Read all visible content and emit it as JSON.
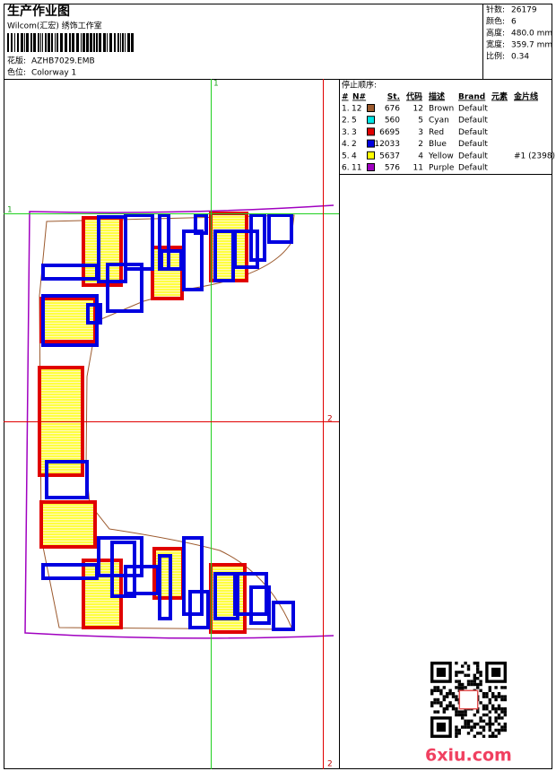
{
  "header": {
    "title": "生产作业图",
    "subtitle": "Wilcom(汇宏) 绣饰工作室",
    "design_label": "花版:",
    "design": "AZHB7029.EMB",
    "colorway_label": "色位:",
    "colorway": "Colorway 1"
  },
  "summary": [
    {
      "label": "针数:",
      "value": "26179"
    },
    {
      "label": "颜色:",
      "value": "6"
    },
    {
      "label": "高度:",
      "value": "480.0 mm"
    },
    {
      "label": "宽度:",
      "value": "359.7 mm"
    },
    {
      "label": "比例:",
      "value": "0.34"
    }
  ],
  "stop_sequence": {
    "title": "停止顺序:",
    "columns": [
      "#",
      "N#",
      "St.",
      "代码",
      "描述",
      "Brand",
      "元素",
      "金片线"
    ],
    "rows": [
      {
        "index": "1.",
        "needle": 12,
        "color": "#9c5a2e",
        "stitches": 676,
        "code": 12,
        "description": "Brown",
        "brand": "Default"
      },
      {
        "index": "2.",
        "needle": 5,
        "color": "#00e5e5",
        "stitches": 560,
        "code": 5,
        "description": "Cyan",
        "brand": "Default"
      },
      {
        "index": "3.",
        "needle": 3,
        "color": "#e00000",
        "stitches": 6695,
        "code": 3,
        "description": "Red",
        "brand": "Default"
      },
      {
        "index": "4.",
        "needle": 2,
        "color": "#0000e0",
        "stitches": 12033,
        "code": 2,
        "description": "Blue",
        "brand": "Default"
      },
      {
        "index": "5.",
        "needle": 4,
        "color": "#ffff00",
        "stitches": 5637,
        "code": 4,
        "description": "Yellow",
        "brand": "Default",
        "sequin": "#1 (2398)"
      },
      {
        "index": "6.",
        "needle": 11,
        "color": "#a000c0",
        "stitches": 576,
        "code": 11,
        "description": "Purple",
        "brand": "Default"
      }
    ]
  },
  "guides": {
    "top": "1",
    "left": "1",
    "right": "2",
    "bottom": "2"
  },
  "watermark": "6xiu.com"
}
